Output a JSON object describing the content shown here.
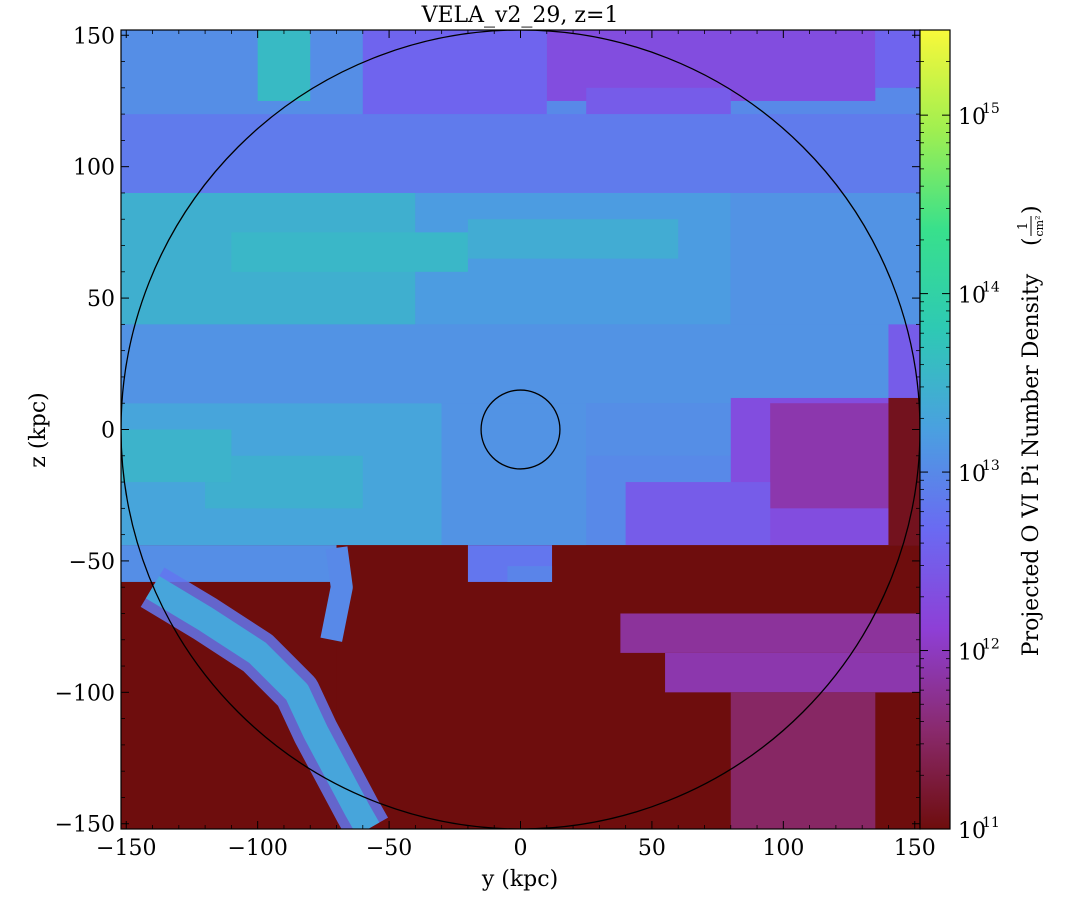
{
  "chart_data": {
    "type": "heatmap",
    "title": "VELA_v2_29, z=1",
    "xlabel": "y  (kpc)",
    "ylabel": "z  (kpc)",
    "xlim": [
      -152,
      152
    ],
    "ylim": [
      -152,
      152
    ],
    "x_ticks": [
      -150,
      -100,
      -50,
      0,
      50,
      100,
      150
    ],
    "y_ticks": [
      -150,
      -100,
      -50,
      0,
      50,
      100,
      150
    ],
    "x_tick_labels": [
      "−150",
      "−100",
      "−50",
      "0",
      "50",
      "100",
      "150"
    ],
    "y_tick_labels": [
      "−150",
      "−100",
      "−50",
      "0",
      "50",
      "100",
      "150"
    ],
    "colorbar": {
      "label": "Projected O VI Pi Number Density",
      "unit_numerator": "1",
      "unit_denominator": "cm²",
      "scale": "log",
      "range": [
        100000000000.0,
        3000000000000000.0
      ],
      "ticks": [
        {
          "base": "10",
          "exp": "11",
          "value": 100000000000.0
        },
        {
          "base": "10",
          "exp": "12",
          "value": 1000000000000.0
        },
        {
          "base": "10",
          "exp": "13",
          "value": 10000000000000.0
        },
        {
          "base": "10",
          "exp": "14",
          "value": 100000000000000.0
        },
        {
          "base": "10",
          "exp": "15",
          "value": 1000000000000000.0
        }
      ],
      "colors": [
        "#6e0d0d",
        "#8a2a6e",
        "#8e3fd6",
        "#6a6af2",
        "#4aa0e0",
        "#2ec9b4",
        "#38e08c",
        "#a0ef50",
        "#f8f83a"
      ]
    },
    "circles": [
      {
        "cx": 0,
        "cy": 0,
        "r": 152
      },
      {
        "cx": 0,
        "cy": 0,
        "r": 15
      }
    ],
    "background_fill_log10": 10.8,
    "regions": [
      {
        "x": [
          -152,
          152
        ],
        "y": [
          -44,
          152
        ],
        "log10": 13.0
      },
      {
        "x": [
          -152,
          -70
        ],
        "y": [
          -58,
          -44
        ],
        "log10": 13.05
      },
      {
        "x": [
          -152,
          -30
        ],
        "y": [
          -44,
          10
        ],
        "log10": 13.3
      },
      {
        "x": [
          -120,
          -60
        ],
        "y": [
          -30,
          -10
        ],
        "log10": 13.45
      },
      {
        "x": [
          -152,
          -110
        ],
        "y": [
          -20,
          0
        ],
        "log10": 13.5
      },
      {
        "x": [
          -30,
          25
        ],
        "y": [
          -44,
          10
        ],
        "log10": 13.1
      },
      {
        "x": [
          25,
          80
        ],
        "y": [
          -10,
          10
        ],
        "log10": 13.05
      },
      {
        "x": [
          -152,
          152
        ],
        "y": [
          10,
          40
        ],
        "log10": 13.1
      },
      {
        "x": [
          -152,
          -40
        ],
        "y": [
          40,
          90
        ],
        "log10": 13.45
      },
      {
        "x": [
          -40,
          80
        ],
        "y": [
          40,
          90
        ],
        "log10": 13.2
      },
      {
        "x": [
          80,
          152
        ],
        "y": [
          40,
          90
        ],
        "log10": 13.1
      },
      {
        "x": [
          -110,
          -20
        ],
        "y": [
          60,
          75
        ],
        "log10": 13.55
      },
      {
        "x": [
          -20,
          60
        ],
        "y": [
          65,
          80
        ],
        "log10": 13.4
      },
      {
        "x": [
          -152,
          152
        ],
        "y": [
          90,
          120
        ],
        "log10": 12.85
      },
      {
        "x": [
          -152,
          -60
        ],
        "y": [
          120,
          152
        ],
        "log10": 13.05
      },
      {
        "x": [
          -100,
          -80
        ],
        "y": [
          125,
          152
        ],
        "log10": 13.6
      },
      {
        "x": [
          -60,
          10
        ],
        "y": [
          120,
          152
        ],
        "log10": 12.6
      },
      {
        "x": [
          10,
          135
        ],
        "y": [
          125,
          152
        ],
        "log10": 12.3
      },
      {
        "x": [
          25,
          80
        ],
        "y": [
          120,
          130
        ],
        "log10": 12.5
      },
      {
        "x": [
          135,
          152
        ],
        "y": [
          130,
          152
        ],
        "log10": 12.6
      },
      {
        "x": [
          140,
          152
        ],
        "y": [
          12,
          40
        ],
        "log10": 12.5
      },
      {
        "x": [
          80,
          152
        ],
        "y": [
          -44,
          12
        ],
        "log10": 12.3
      },
      {
        "x": [
          95,
          140
        ],
        "y": [
          -30,
          10
        ],
        "log10": 11.9
      },
      {
        "x": [
          140,
          152
        ],
        "y": [
          -44,
          12
        ],
        "log10": 11.1
      },
      {
        "x": [
          40,
          95
        ],
        "y": [
          -44,
          -20
        ],
        "log10": 12.5
      },
      {
        "x": [
          -70,
          152
        ],
        "y": [
          -152,
          -44
        ],
        "log10": 10.9
      },
      {
        "x": [
          38,
          152
        ],
        "y": [
          -85,
          -70
        ],
        "log10": 11.8
      },
      {
        "x": [
          55,
          152
        ],
        "y": [
          -100,
          -85
        ],
        "log10": 11.9
      },
      {
        "x": [
          80,
          135
        ],
        "y": [
          -152,
          -100
        ],
        "log10": 11.5
      },
      {
        "x": [
          -20,
          12
        ],
        "y": [
          -58,
          -44
        ],
        "log10": 12.8
      },
      {
        "x": [
          -5,
          12
        ],
        "y": [
          -58,
          -52
        ],
        "log10": 12.95
      }
    ],
    "filament": {
      "note": "bright diagonal stream in lower-left",
      "points": [
        [
          -140,
          -60
        ],
        [
          -120,
          -72
        ],
        [
          -100,
          -85
        ],
        [
          -85,
          -100
        ],
        [
          -78,
          -115
        ],
        [
          -70,
          -130
        ],
        [
          -62,
          -145
        ],
        [
          -58,
          -152
        ]
      ],
      "upper_points": [
        [
          -70,
          -45
        ],
        [
          -68,
          -60
        ],
        [
          -72,
          -80
        ]
      ],
      "log10": 13.3
    }
  }
}
